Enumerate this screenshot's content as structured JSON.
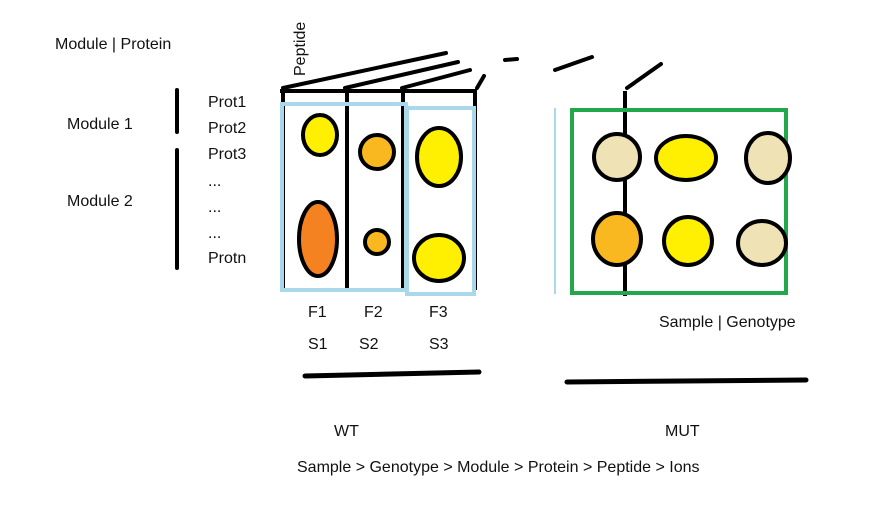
{
  "labels": {
    "module_protein": "Module | Protein",
    "peptide": "Peptide",
    "module1": "Module 1",
    "module2": "Module 2",
    "sample_genotype": "Sample | Genotype",
    "wt": "WT",
    "mut": "MUT",
    "hierarchy": "Sample > Genotype > Module > Protein > Peptide > Ions"
  },
  "proteins": [
    "Prot1",
    "Prot2",
    "Prot3",
    "...",
    "...",
    "...",
    "Protn"
  ],
  "fractions": [
    "F1",
    "F2",
    "F3"
  ],
  "samples": [
    "S1",
    "S2",
    "S3"
  ],
  "colors": {
    "frame": "#000000",
    "wt_highlight": "#a8d8ea",
    "mut_highlight": "#22a84a",
    "yellow": "#ffef00",
    "orange_light": "#f9b820",
    "orange_dark": "#f58220",
    "beige": "#efe2b5"
  }
}
